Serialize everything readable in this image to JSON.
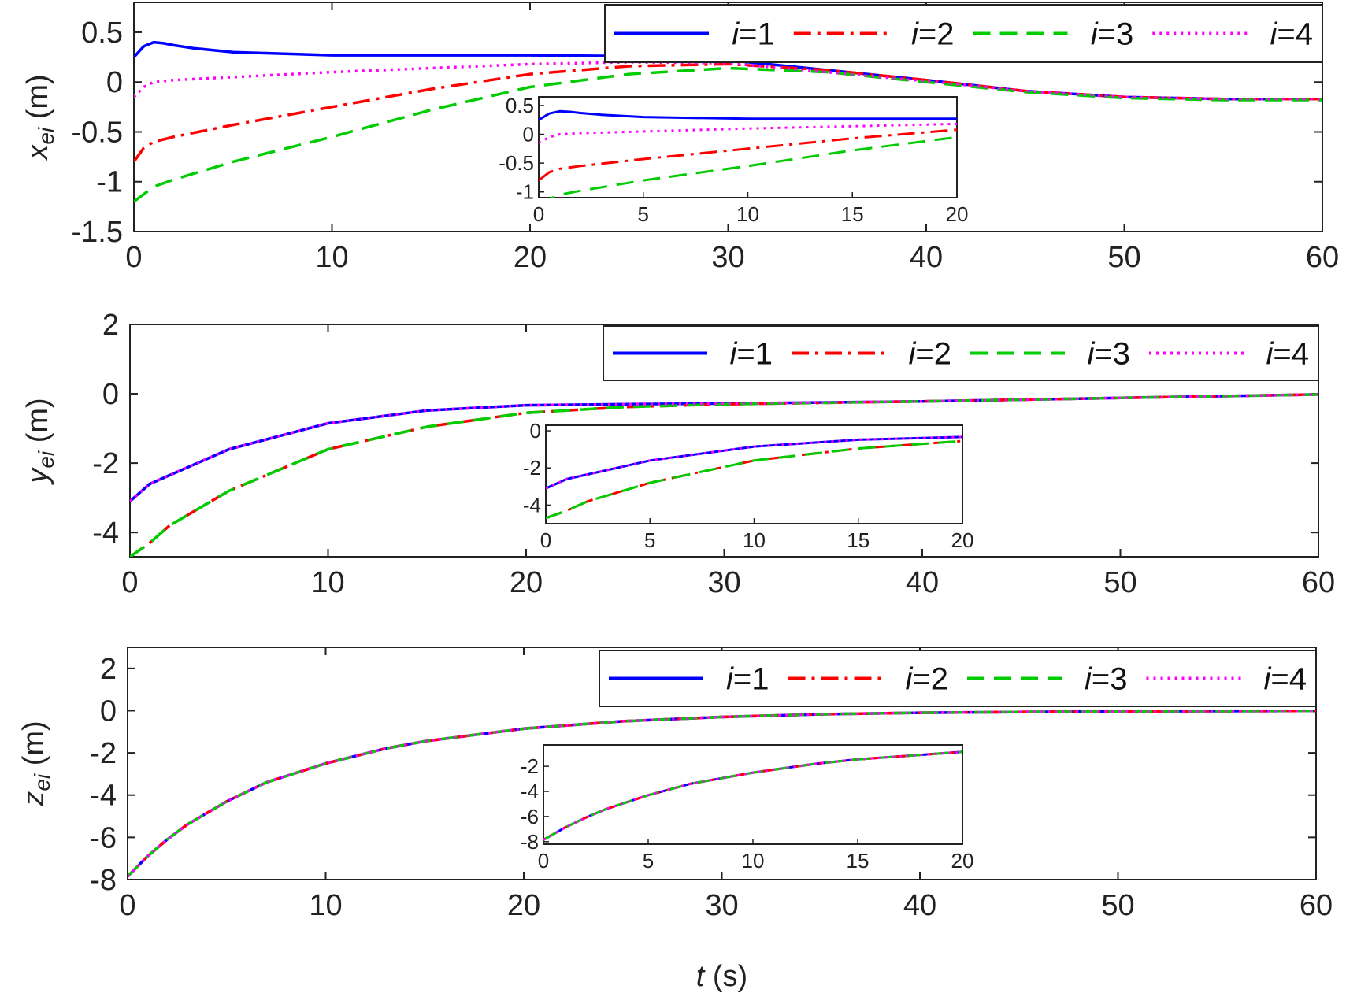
{
  "chart_data": [
    {
      "type": "line",
      "ylabel_main": "x",
      "ylabel_sub": "ei",
      "ylabel_unit": " (m)",
      "xlim": [
        0,
        60
      ],
      "ylim": [
        -1.5,
        0.8
      ],
      "xticks": [
        "0",
        "10",
        "20",
        "30",
        "40",
        "50",
        "60"
      ],
      "yticks": [
        "0.5",
        "0",
        "-0.5",
        "-1",
        "-1.5"
      ],
      "legend": {
        "placement": "top-right"
      },
      "series": [
        {
          "name": "i=1",
          "color": "#0000ff",
          "style": "solid",
          "x": [
            0,
            0.5,
            1,
            1.5,
            2,
            3,
            5,
            10,
            20,
            25,
            30,
            35,
            40,
            45,
            50,
            55,
            60
          ],
          "y": [
            0.25,
            0.36,
            0.4,
            0.39,
            0.37,
            0.34,
            0.3,
            0.27,
            0.27,
            0.26,
            0.22,
            0.12,
            0.02,
            -0.09,
            -0.15,
            -0.17,
            -0.17
          ]
        },
        {
          "name": "i=2",
          "color": "#ff0000",
          "style": "dashdot",
          "x": [
            0,
            0.5,
            1,
            2,
            5,
            10,
            15,
            20,
            25,
            30,
            35,
            40,
            45,
            50,
            55,
            60
          ],
          "y": [
            -0.8,
            -0.66,
            -0.6,
            -0.55,
            -0.43,
            -0.25,
            -0.07,
            0.08,
            0.16,
            0.18,
            0.12,
            0.02,
            -0.09,
            -0.15,
            -0.17,
            -0.17
          ]
        },
        {
          "name": "i=3",
          "color": "#00cc00",
          "style": "dashed",
          "x": [
            0,
            1,
            2,
            5,
            10,
            15,
            20,
            25,
            30,
            35,
            40,
            45,
            50,
            55,
            60
          ],
          "y": [
            -1.2,
            -1.05,
            -0.98,
            -0.8,
            -0.55,
            -0.28,
            -0.05,
            0.08,
            0.14,
            0.1,
            0.0,
            -0.1,
            -0.16,
            -0.18,
            -0.18
          ]
        },
        {
          "name": "i=4",
          "color": "#ff00ff",
          "style": "dotted",
          "x": [
            0,
            0.5,
            1,
            2,
            5,
            10,
            15,
            20,
            25,
            30,
            35,
            40,
            45,
            50,
            55,
            60
          ],
          "y": [
            -0.15,
            -0.05,
            0.0,
            0.02,
            0.05,
            0.1,
            0.14,
            0.18,
            0.2,
            0.19,
            0.1,
            0.01,
            -0.09,
            -0.15,
            -0.17,
            -0.17
          ]
        }
      ],
      "inset": {
        "xlim": [
          0,
          20
        ],
        "ylim": [
          -1.1,
          0.65
        ],
        "xticks": [
          "0",
          "5",
          "10",
          "15",
          "20"
        ],
        "yticks": [
          "0.5",
          "0",
          "-0.5",
          "-1"
        ]
      }
    },
    {
      "type": "line",
      "ylabel_main": "y",
      "ylabel_sub": "ei",
      "ylabel_unit": " (m)",
      "xlim": [
        0,
        60
      ],
      "ylim": [
        -4.7,
        2
      ],
      "xticks": [
        "0",
        "10",
        "20",
        "30",
        "40",
        "50",
        "60"
      ],
      "yticks": [
        "2",
        "0",
        "-2",
        "-4"
      ],
      "legend": {
        "placement": "top-right"
      },
      "series": [
        {
          "name": "i=1",
          "color": "#0000ff",
          "style": "solid",
          "x": [
            0,
            1,
            2,
            5,
            10,
            15,
            20,
            25,
            30,
            40,
            50,
            60
          ],
          "y": [
            -3.1,
            -2.6,
            -2.35,
            -1.6,
            -0.85,
            -0.48,
            -0.33,
            -0.3,
            -0.28,
            -0.22,
            -0.12,
            -0.02
          ]
        },
        {
          "name": "i=2",
          "color": "#ff0000",
          "style": "dashdot",
          "x": [
            0,
            1,
            2,
            5,
            10,
            15,
            20,
            25,
            30,
            40,
            50,
            60
          ],
          "y": [
            -4.7,
            -4.3,
            -3.8,
            -2.8,
            -1.6,
            -0.95,
            -0.55,
            -0.38,
            -0.3,
            -0.22,
            -0.12,
            -0.02
          ]
        },
        {
          "name": "i=3",
          "color": "#00cc00",
          "style": "dashed",
          "x": [
            0,
            1,
            2,
            5,
            10,
            15,
            20,
            25,
            30,
            40,
            50,
            60
          ],
          "y": [
            -4.7,
            -4.3,
            -3.8,
            -2.8,
            -1.6,
            -0.95,
            -0.55,
            -0.38,
            -0.3,
            -0.22,
            -0.12,
            -0.02
          ]
        },
        {
          "name": "i=4",
          "color": "#ff00ff",
          "style": "dotted",
          "x": [
            0,
            1,
            2,
            5,
            10,
            15,
            20,
            25,
            30,
            40,
            50,
            60
          ],
          "y": [
            -3.1,
            -2.6,
            -2.35,
            -1.6,
            -0.85,
            -0.48,
            -0.33,
            -0.3,
            -0.28,
            -0.22,
            -0.12,
            -0.02
          ]
        }
      ],
      "inset": {
        "xlim": [
          0,
          20
        ],
        "ylim": [
          -5,
          0.3
        ],
        "xticks": [
          "0",
          "5",
          "10",
          "15",
          "20"
        ],
        "yticks": [
          "0",
          "-2",
          "-4"
        ]
      }
    },
    {
      "type": "line",
      "ylabel_main": "z",
      "ylabel_sub": "ei",
      "ylabel_unit": " (m)",
      "xlabel_main": "t",
      "xlabel_unit": " (s)",
      "xlim": [
        0,
        60
      ],
      "ylim": [
        -8,
        3
      ],
      "xticks": [
        "0",
        "10",
        "20",
        "30",
        "40",
        "50",
        "60"
      ],
      "yticks": [
        "2",
        "0",
        "-2",
        "-4",
        "-6",
        "-8"
      ],
      "legend": {
        "placement": "top-right"
      },
      "series": [
        {
          "name": "i=1",
          "color": "#0000ff",
          "style": "solid",
          "x": [
            0,
            1,
            2,
            3,
            5,
            7,
            10,
            13,
            15,
            20,
            25,
            30,
            35,
            40,
            50,
            60
          ],
          "y": [
            -7.85,
            -6.9,
            -6.1,
            -5.4,
            -4.3,
            -3.4,
            -2.5,
            -1.8,
            -1.45,
            -0.85,
            -0.5,
            -0.3,
            -0.17,
            -0.1,
            -0.03,
            -0.01
          ]
        },
        {
          "name": "i=2",
          "color": "#ff0000",
          "style": "dashdot",
          "x": [
            0,
            1,
            2,
            3,
            5,
            7,
            10,
            13,
            15,
            20,
            25,
            30,
            35,
            40,
            50,
            60
          ],
          "y": [
            -7.85,
            -6.9,
            -6.1,
            -5.4,
            -4.3,
            -3.4,
            -2.5,
            -1.8,
            -1.45,
            -0.85,
            -0.5,
            -0.3,
            -0.17,
            -0.1,
            -0.03,
            -0.01
          ]
        },
        {
          "name": "i=3",
          "color": "#00cc00",
          "style": "dashed",
          "x": [
            0,
            1,
            2,
            3,
            5,
            7,
            10,
            13,
            15,
            20,
            25,
            30,
            35,
            40,
            50,
            60
          ],
          "y": [
            -7.85,
            -6.9,
            -6.1,
            -5.4,
            -4.3,
            -3.4,
            -2.5,
            -1.8,
            -1.45,
            -0.85,
            -0.5,
            -0.3,
            -0.17,
            -0.1,
            -0.03,
            -0.01
          ]
        },
        {
          "name": "i=4",
          "color": "#ff00ff",
          "style": "dotted",
          "x": [
            0,
            1,
            2,
            3,
            5,
            7,
            10,
            13,
            15,
            20,
            25,
            30,
            35,
            40,
            50,
            60
          ],
          "y": [
            -7.85,
            -6.9,
            -6.1,
            -5.4,
            -4.3,
            -3.4,
            -2.5,
            -1.8,
            -1.45,
            -0.85,
            -0.5,
            -0.3,
            -0.17,
            -0.1,
            -0.03,
            -0.01
          ]
        }
      ],
      "inset": {
        "xlim": [
          0,
          20
        ],
        "ylim": [
          -8.2,
          -0.3
        ],
        "xticks": [
          "0",
          "5",
          "10",
          "15",
          "20"
        ],
        "yticks": [
          "-2",
          "-4",
          "-6",
          "-8"
        ]
      }
    }
  ]
}
